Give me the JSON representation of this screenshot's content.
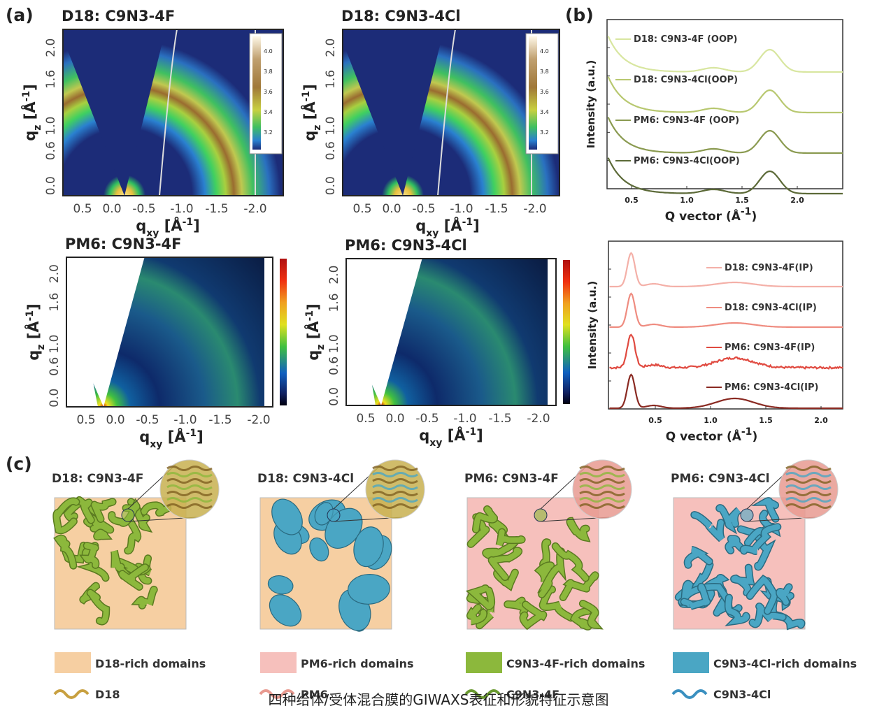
{
  "panel_a": {
    "label": "(a)",
    "maps": [
      {
        "title": "D18: C9N3-4F",
        "colorbar_ticks": [
          "4.0",
          "3.8",
          "3.6",
          "3.4",
          "3.2"
        ]
      },
      {
        "title": "D18: C9N3-4Cl",
        "colorbar_ticks": [
          "4.0",
          "3.8",
          "3.6",
          "3.4",
          "3.2"
        ]
      },
      {
        "title": "PM6: C9N3-4F"
      },
      {
        "title": "PM6: C9N3-4Cl"
      }
    ],
    "y_ticks": [
      "0.0",
      "0.6",
      "1.0",
      "1.6",
      "2.0"
    ],
    "x_ticks": [
      "0.5",
      "0.0",
      "-0.5",
      "-1.0",
      "-1.5",
      "-2.0"
    ],
    "y_axis": {
      "main": "q",
      "sub": "z",
      "unit": " [Å",
      "sup": "-1",
      "close": "]"
    },
    "x_axis": {
      "main": "q",
      "sub": "xy",
      "unit": " [Å",
      "sup": "-1",
      "close": "]"
    }
  },
  "panel_b": {
    "label": "(b)",
    "charts": [
      {
        "curve_labels": [
          "D18: C9N3-4F (OOP)",
          "D18: C9N3-4Cl(OOP)",
          "PM6: C9N3-4F (OOP)",
          "PM6: C9N3-4Cl(OOP)"
        ],
        "x_ticks": [
          "0.5",
          "1.0",
          "1.5",
          "2.0"
        ]
      },
      {
        "curve_labels": [
          "D18: C9N3-4F(IP)",
          "D18: C9N3-4Cl(IP)",
          "PM6: C9N3-4F(IP)",
          "PM6: C9N3-4Cl(IP)"
        ],
        "x_ticks": [
          "0.5",
          "1.0",
          "1.5",
          "2.0"
        ]
      }
    ],
    "y_label": "Intensity (a.u.)",
    "x_label": {
      "main": "Q vector (Å",
      "sup": "-1",
      "close": ")"
    }
  },
  "panel_c": {
    "label": "(c)",
    "titles": [
      "D18: C9N3-4F",
      "D18: C9N3-4Cl",
      "PM6: C9N3-4F",
      "PM6: C9N3-4Cl"
    ],
    "legend": [
      "D18-rich domains",
      "PM6-rich domains",
      "C9N3-4F-rich domains",
      "C9N3-4Cl-rich domains",
      "D18",
      "PM6",
      "C9N3-4F",
      "C9N3-4Cl"
    ]
  },
  "caption": "四种给体/受体混合膜的GIWAXS表征和形貌特征示意图"
}
